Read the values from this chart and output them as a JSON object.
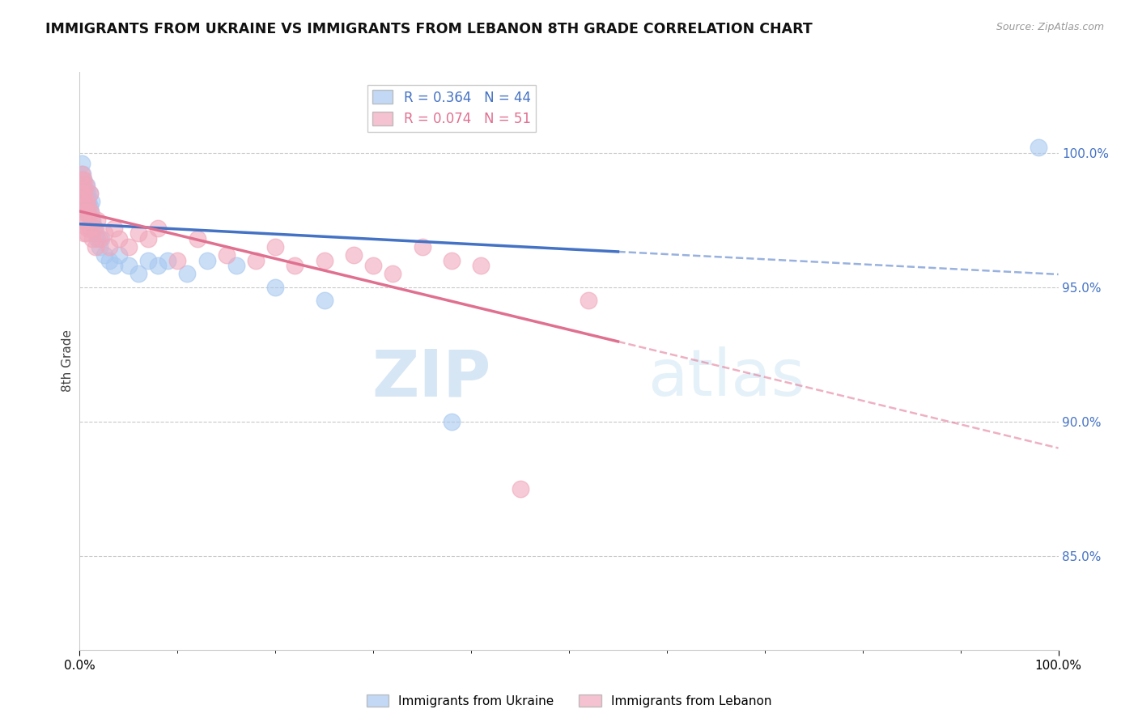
{
  "title": "IMMIGRANTS FROM UKRAINE VS IMMIGRANTS FROM LEBANON 8TH GRADE CORRELATION CHART",
  "source": "Source: ZipAtlas.com",
  "ylabel": "8th Grade",
  "ylim": [
    0.815,
    1.03
  ],
  "xlim": [
    0.0,
    1.0
  ],
  "ukraine_R": 0.364,
  "ukraine_N": 44,
  "lebanon_R": 0.074,
  "lebanon_N": 51,
  "ukraine_color": "#A8C8F0",
  "lebanon_color": "#F0A8BC",
  "ukraine_trend_color": "#4472C4",
  "lebanon_trend_color": "#E07090",
  "background_color": "#FFFFFF",
  "y_tick_positions": [
    0.85,
    0.9,
    0.95,
    1.0
  ],
  "y_tick_labels": [
    "85.0%",
    "90.0%",
    "95.0%",
    "100.0%"
  ],
  "ukraine_x": [
    0.001,
    0.002,
    0.002,
    0.003,
    0.003,
    0.003,
    0.004,
    0.004,
    0.005,
    0.005,
    0.005,
    0.006,
    0.006,
    0.007,
    0.007,
    0.008,
    0.008,
    0.009,
    0.01,
    0.01,
    0.011,
    0.012,
    0.013,
    0.015,
    0.016,
    0.018,
    0.02,
    0.022,
    0.025,
    0.03,
    0.035,
    0.04,
    0.05,
    0.06,
    0.07,
    0.08,
    0.09,
    0.11,
    0.13,
    0.16,
    0.2,
    0.25,
    0.38,
    0.98
  ],
  "ukraine_y": [
    0.988,
    0.996,
    0.985,
    0.992,
    0.988,
    0.982,
    0.99,
    0.984,
    0.988,
    0.982,
    0.978,
    0.985,
    0.98,
    0.988,
    0.982,
    0.985,
    0.978,
    0.982,
    0.985,
    0.98,
    0.978,
    0.982,
    0.975,
    0.972,
    0.97,
    0.968,
    0.965,
    0.968,
    0.962,
    0.96,
    0.958,
    0.962,
    0.958,
    0.955,
    0.96,
    0.958,
    0.96,
    0.955,
    0.96,
    0.958,
    0.95,
    0.945,
    0.9,
    1.002
  ],
  "lebanon_x": [
    0.001,
    0.001,
    0.002,
    0.002,
    0.003,
    0.003,
    0.003,
    0.004,
    0.004,
    0.005,
    0.005,
    0.005,
    0.006,
    0.006,
    0.007,
    0.007,
    0.008,
    0.008,
    0.009,
    0.01,
    0.01,
    0.011,
    0.012,
    0.013,
    0.015,
    0.016,
    0.018,
    0.02,
    0.025,
    0.03,
    0.035,
    0.04,
    0.05,
    0.06,
    0.07,
    0.08,
    0.1,
    0.12,
    0.15,
    0.18,
    0.2,
    0.22,
    0.25,
    0.28,
    0.3,
    0.32,
    0.35,
    0.38,
    0.41,
    0.45,
    0.52
  ],
  "lebanon_y": [
    0.99,
    0.985,
    0.992,
    0.982,
    0.988,
    0.985,
    0.975,
    0.99,
    0.978,
    0.985,
    0.98,
    0.97,
    0.988,
    0.975,
    0.982,
    0.97,
    0.978,
    0.972,
    0.98,
    0.985,
    0.972,
    0.978,
    0.975,
    0.968,
    0.972,
    0.965,
    0.975,
    0.968,
    0.97,
    0.965,
    0.972,
    0.968,
    0.965,
    0.97,
    0.968,
    0.972,
    0.96,
    0.968,
    0.962,
    0.96,
    0.965,
    0.958,
    0.96,
    0.962,
    0.958,
    0.955,
    0.965,
    0.96,
    0.958,
    0.875,
    0.945
  ],
  "watermark_zip": "ZIP",
  "watermark_atlas": "atlas",
  "legend_ukraine": "Immigrants from Ukraine",
  "legend_lebanon": "Immigrants from Lebanon"
}
